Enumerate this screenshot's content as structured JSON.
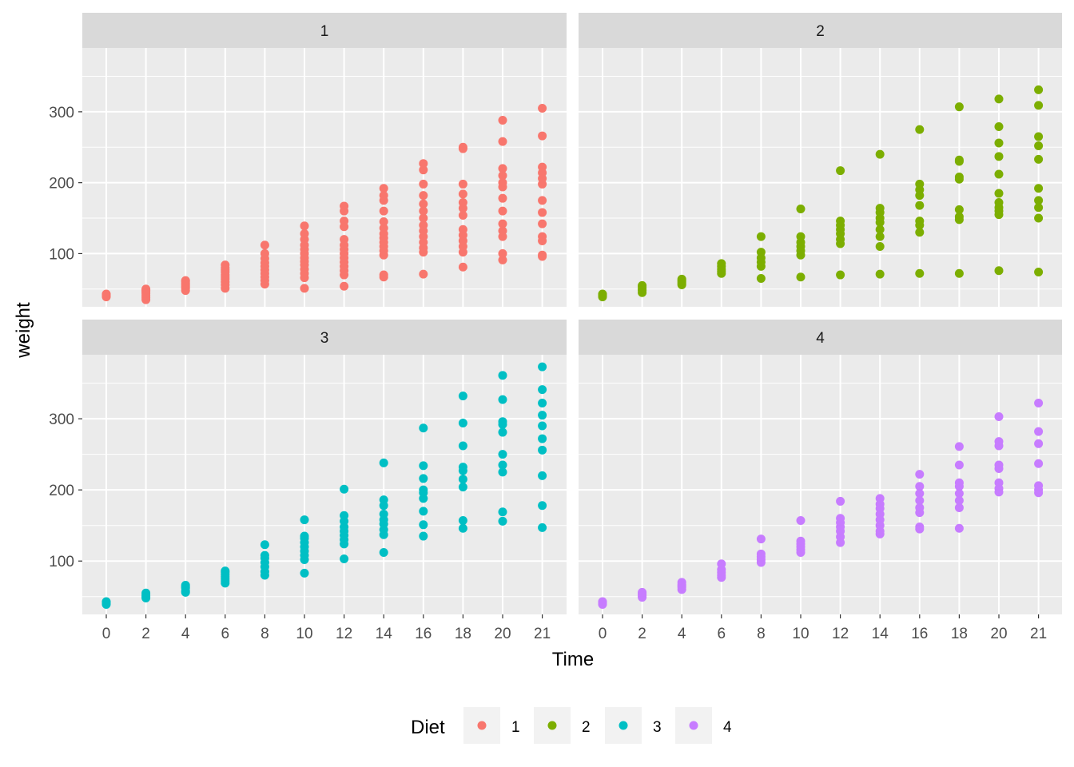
{
  "chart_data": {
    "type": "scatter",
    "facet_by": "Diet",
    "facet_layout": "2x2",
    "xlabel": "Time",
    "ylabel": "weight",
    "x_ticks": [
      0,
      2,
      4,
      6,
      8,
      10,
      12,
      14,
      16,
      18,
      20,
      21
    ],
    "y_ticks": [
      100,
      200,
      300
    ],
    "ylim": [
      25,
      390
    ],
    "grid": true,
    "legend": {
      "title": "Diet",
      "position": "bottom",
      "entries": [
        "1",
        "2",
        "3",
        "4"
      ]
    },
    "panels": [
      {
        "label": "1",
        "color": "#F8766D",
        "points": {
          "0": [
            39,
            41,
            42,
            43
          ],
          "2": [
            35,
            38,
            41,
            44,
            46,
            48,
            49,
            50
          ],
          "4": [
            48,
            51,
            53,
            55,
            57,
            59,
            61,
            62
          ],
          "6": [
            51,
            56,
            60,
            64,
            67,
            70,
            74,
            77,
            80,
            84
          ],
          "8": [
            57,
            62,
            67,
            72,
            77,
            82,
            87,
            93,
            100,
            112
          ],
          "10": [
            51,
            66,
            72,
            78,
            84,
            89,
            94,
            100,
            106,
            112,
            120,
            128,
            139
          ],
          "12": [
            54,
            70,
            76,
            82,
            88,
            94,
            100,
            106,
            112,
            120,
            138,
            146,
            160,
            167
          ],
          "14": [
            67,
            70,
            98,
            104,
            110,
            116,
            122,
            128,
            136,
            145,
            160,
            175,
            182,
            192
          ],
          "16": [
            71,
            102,
            108,
            116,
            124,
            132,
            140,
            150,
            160,
            170,
            182,
            198,
            218,
            227
          ],
          "18": [
            81,
            102,
            110,
            118,
            126,
            134,
            154,
            164,
            172,
            184,
            198,
            248,
            250
          ],
          "20": [
            91,
            100,
            124,
            132,
            142,
            160,
            178,
            194,
            200,
            210,
            220,
            258,
            288
          ],
          "21": [
            96,
            98,
            118,
            124,
            142,
            158,
            175,
            198,
            206,
            214,
            222,
            266,
            305
          ]
        }
      },
      {
        "label": "2",
        "color": "#7CAE00",
        "points": {
          "0": [
            39,
            41,
            42,
            43
          ],
          "2": [
            45,
            48,
            50,
            53,
            55
          ],
          "4": [
            56,
            58,
            60,
            62,
            64
          ],
          "6": [
            72,
            75,
            78,
            82,
            86
          ],
          "8": [
            65,
            82,
            88,
            94,
            102,
            124
          ],
          "10": [
            67,
            98,
            104,
            110,
            116,
            124,
            163
          ],
          "12": [
            70,
            114,
            120,
            128,
            134,
            140,
            146,
            217
          ],
          "14": [
            71,
            110,
            124,
            134,
            144,
            150,
            158,
            164,
            240
          ],
          "16": [
            72,
            130,
            140,
            146,
            168,
            182,
            190,
            198,
            275
          ],
          "18": [
            72,
            148,
            152,
            162,
            205,
            208,
            230,
            232,
            307
          ],
          "20": [
            76,
            155,
            160,
            165,
            172,
            185,
            212,
            237,
            256,
            279,
            318
          ],
          "21": [
            74,
            150,
            165,
            175,
            192,
            233,
            252,
            265,
            309,
            331
          ]
        }
      },
      {
        "label": "3",
        "color": "#00BFC4",
        "points": {
          "0": [
            39,
            41,
            42,
            43
          ],
          "2": [
            48,
            50,
            52,
            55
          ],
          "4": [
            56,
            58,
            62,
            64,
            66
          ],
          "6": [
            69,
            72,
            75,
            78,
            81,
            84,
            86
          ],
          "8": [
            80,
            85,
            92,
            98,
            104,
            108,
            123
          ],
          "10": [
            83,
            102,
            108,
            114,
            120,
            126,
            132,
            135,
            158
          ],
          "12": [
            103,
            124,
            130,
            136,
            142,
            148,
            156,
            164,
            201
          ],
          "14": [
            112,
            137,
            144,
            152,
            158,
            166,
            178,
            186,
            238
          ],
          "16": [
            135,
            151,
            170,
            188,
            196,
            200,
            216,
            234,
            287
          ],
          "18": [
            146,
            157,
            204,
            215,
            227,
            232,
            262,
            294,
            332
          ],
          "20": [
            156,
            169,
            225,
            235,
            250,
            281,
            292,
            296,
            327,
            361
          ],
          "21": [
            147,
            178,
            220,
            256,
            272,
            290,
            305,
            322,
            341,
            373
          ]
        }
      },
      {
        "label": "4",
        "color": "#C77CFF",
        "points": {
          "0": [
            39,
            41,
            42,
            43
          ],
          "2": [
            49,
            51,
            53,
            55,
            56
          ],
          "4": [
            60,
            63,
            65,
            67,
            70
          ],
          "6": [
            77,
            80,
            84,
            88,
            96
          ],
          "8": [
            98,
            102,
            106,
            110,
            131
          ],
          "10": [
            112,
            116,
            120,
            124,
            128,
            157
          ],
          "12": [
            126,
            134,
            142,
            148,
            154,
            160,
            184
          ],
          "14": [
            138,
            142,
            150,
            158,
            166,
            174,
            180,
            188
          ],
          "16": [
            145,
            148,
            168,
            175,
            185,
            195,
            205,
            222
          ],
          "18": [
            146,
            175,
            185,
            195,
            205,
            210,
            235,
            261
          ],
          "20": [
            197,
            202,
            210,
            230,
            235,
            262,
            268,
            303
          ],
          "21": [
            196,
            200,
            206,
            237,
            265,
            282,
            322
          ]
        }
      }
    ]
  }
}
